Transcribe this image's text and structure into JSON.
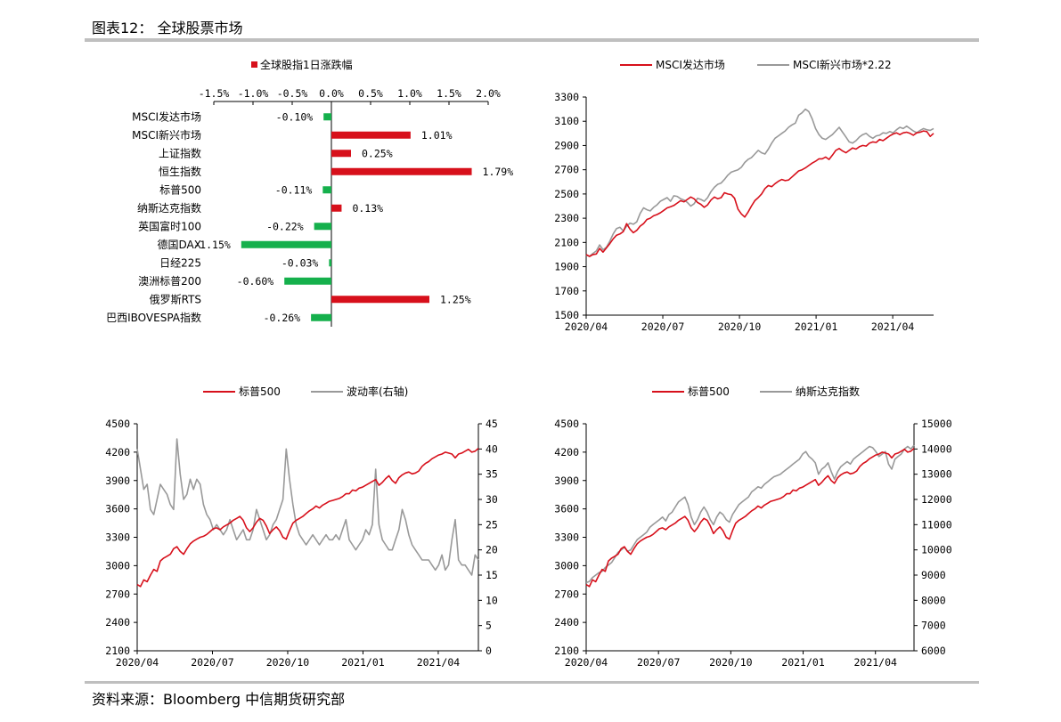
{
  "header": {
    "title": "图表12： 全球股票市场"
  },
  "footer": {
    "source": "资料来源：Bloomberg 中信期货研究部"
  },
  "colors": {
    "red": "#d7101b",
    "green": "#15b04c",
    "gray": "#999999",
    "rule": "#bfbfbf"
  },
  "chart_data": [
    {
      "type": "bar",
      "orientation": "horizontal",
      "legend": "全球股指1日涨跌幅",
      "xlim": [
        -1.5,
        2.0
      ],
      "xticks": [
        "-1.5%",
        "-1.0%",
        "-0.5%",
        "0.0%",
        "0.5%",
        "1.0%",
        "1.5%",
        "2.0%"
      ],
      "categories": [
        "MSCI发达市场",
        "MSCI新兴市场",
        "上证指数",
        "恒生指数",
        "标普500",
        "纳斯达克指数",
        "英国富时100",
        "德国DAX",
        "日经225",
        "澳洲标普200",
        "俄罗斯RTS",
        "巴西IBOVESPA指数"
      ],
      "values": [
        -0.1,
        1.01,
        0.25,
        1.79,
        -0.11,
        0.13,
        -0.22,
        -1.15,
        -0.03,
        -0.6,
        1.25,
        -0.26
      ],
      "value_labels": [
        "-0.10%",
        "1.01%",
        "0.25%",
        "1.79%",
        "-0.11%",
        "0.13%",
        "-0.22%",
        "-1.15%",
        "-0.03%",
        "-0.60%",
        "1.25%",
        "-0.26%"
      ]
    },
    {
      "type": "line",
      "ylim": [
        1500,
        3300
      ],
      "yticks": [
        "1500",
        "1700",
        "1900",
        "2100",
        "2300",
        "2500",
        "2700",
        "2900",
        "3100",
        "3300"
      ],
      "xticks": [
        "2020/04",
        "2020/07",
        "2020/10",
        "2021/01",
        "2021/04"
      ],
      "series": [
        {
          "name": "MSCI发达市场",
          "color": "red",
          "values": [
            2000,
            1985,
            2000,
            2005,
            2050,
            2020,
            2055,
            2090,
            2130,
            2160,
            2170,
            2190,
            2255,
            2210,
            2180,
            2200,
            2235,
            2255,
            2290,
            2300,
            2320,
            2330,
            2345,
            2365,
            2385,
            2395,
            2405,
            2425,
            2445,
            2435,
            2455,
            2475,
            2460,
            2430,
            2415,
            2390,
            2410,
            2450,
            2475,
            2460,
            2470,
            2510,
            2500,
            2495,
            2465,
            2375,
            2335,
            2310,
            2350,
            2400,
            2445,
            2470,
            2500,
            2545,
            2570,
            2560,
            2585,
            2605,
            2620,
            2610,
            2615,
            2640,
            2665,
            2690,
            2700,
            2715,
            2735,
            2755,
            2770,
            2790,
            2790,
            2805,
            2785,
            2820,
            2860,
            2875,
            2855,
            2840,
            2860,
            2880,
            2870,
            2890,
            2900,
            2895,
            2920,
            2930,
            2925,
            2950,
            2940,
            2960,
            2980,
            2995,
            3005,
            2990,
            3005,
            3010,
            3000,
            2985,
            3005,
            3010,
            3020,
            3015,
            2975,
            3000
          ]
        },
        {
          "name": "MSCI新兴市场*2.22",
          "color": "gray",
          "values": [
            1995,
            1985,
            2010,
            2030,
            2080,
            2040,
            2060,
            2110,
            2170,
            2215,
            2225,
            2195,
            2235,
            2260,
            2250,
            2270,
            2340,
            2385,
            2370,
            2360,
            2390,
            2410,
            2440,
            2455,
            2470,
            2440,
            2485,
            2480,
            2460,
            2450,
            2430,
            2400,
            2420,
            2465,
            2455,
            2440,
            2470,
            2520,
            2555,
            2580,
            2590,
            2620,
            2655,
            2680,
            2690,
            2700,
            2720,
            2760,
            2785,
            2800,
            2830,
            2860,
            2840,
            2830,
            2870,
            2920,
            2960,
            2980,
            3000,
            3020,
            3050,
            3070,
            3085,
            3150,
            3170,
            3200,
            3180,
            3120,
            3040,
            2990,
            2960,
            2950,
            2970,
            2990,
            3020,
            3050,
            3010,
            2970,
            2930,
            2920,
            2940,
            2970,
            2990,
            3000,
            2975,
            2960,
            2980,
            2985,
            3005,
            3000,
            3015,
            3005,
            3030,
            3050,
            3040,
            3060,
            3040,
            3020,
            3005,
            3025,
            3040,
            3030,
            3025,
            3040
          ]
        }
      ],
      "legend": [
        "MSCI发达市场",
        "MSCI新兴市场*2.22"
      ]
    },
    {
      "type": "line",
      "ylim": [
        2100,
        4500
      ],
      "yticks": [
        "2100",
        "2400",
        "2700",
        "3000",
        "3300",
        "3600",
        "3900",
        "4200",
        "4500"
      ],
      "y2lim": [
        0,
        45
      ],
      "y2ticks": [
        "0",
        "5",
        "10",
        "15",
        "20",
        "25",
        "30",
        "35",
        "40",
        "45"
      ],
      "xticks": [
        "2020/04",
        "2020/07",
        "2020/10",
        "2021/01",
        "2021/04"
      ],
      "series": [
        {
          "name": "标普500",
          "color": "red",
          "axis": "left",
          "values": [
            2800,
            2780,
            2850,
            2830,
            2900,
            2960,
            2940,
            3050,
            3080,
            3100,
            3120,
            3180,
            3200,
            3150,
            3120,
            3180,
            3230,
            3260,
            3280,
            3300,
            3310,
            3330,
            3360,
            3390,
            3400,
            3380,
            3410,
            3430,
            3450,
            3480,
            3500,
            3520,
            3480,
            3400,
            3360,
            3400,
            3460,
            3500,
            3480,
            3420,
            3340,
            3380,
            3410,
            3370,
            3300,
            3280,
            3370,
            3450,
            3480,
            3500,
            3520,
            3550,
            3580,
            3600,
            3630,
            3610,
            3640,
            3660,
            3680,
            3690,
            3700,
            3710,
            3730,
            3760,
            3760,
            3800,
            3790,
            3820,
            3830,
            3850,
            3870,
            3890,
            3910,
            3850,
            3880,
            3920,
            3950,
            3900,
            3870,
            3930,
            3960,
            3980,
            3990,
            3970,
            3980,
            4000,
            4050,
            4080,
            4100,
            4130,
            4150,
            4170,
            4180,
            4200,
            4190,
            4180,
            4140,
            4180,
            4190,
            4210,
            4230,
            4200,
            4210,
            4240
          ]
        },
        {
          "name": "波动率(右轴)",
          "color": "gray",
          "axis": "right",
          "values": [
            40,
            36,
            32,
            33,
            28,
            27,
            30,
            33,
            32,
            31,
            29,
            28,
            42,
            35,
            30,
            31,
            34,
            32,
            34,
            33,
            29,
            27,
            26,
            24,
            25,
            24,
            23,
            24,
            26,
            24,
            22,
            23,
            24,
            22,
            22,
            24,
            28,
            26,
            24,
            22,
            23,
            25,
            26,
            28,
            30,
            40,
            34,
            29,
            25,
            23,
            22,
            21,
            22,
            23,
            22,
            21,
            22,
            23,
            22,
            22,
            23,
            22,
            24,
            26,
            22,
            21,
            20,
            21,
            22,
            24,
            23,
            25,
            36,
            25,
            22,
            21,
            20,
            20,
            22,
            24,
            28,
            26,
            23,
            21,
            20,
            19,
            18,
            18,
            18,
            17,
            16,
            17,
            19,
            16,
            17,
            22,
            26,
            18,
            17,
            17,
            16,
            15,
            19,
            18
          ]
        }
      ],
      "legend": [
        "标普500",
        "波动率(右轴)"
      ]
    },
    {
      "type": "line",
      "ylim": [
        2100,
        4500
      ],
      "yticks": [
        "2100",
        "2400",
        "2700",
        "3000",
        "3300",
        "3600",
        "3900",
        "4200",
        "4500"
      ],
      "y2lim": [
        6000,
        15000
      ],
      "y2ticks": [
        "6000",
        "7000",
        "8000",
        "9000",
        "10000",
        "11000",
        "12000",
        "13000",
        "14000",
        "15000"
      ],
      "xticks": [
        "2020/04",
        "2020/07",
        "2020/10",
        "2021/01",
        "2021/04"
      ],
      "series": [
        {
          "name": "标普500",
          "color": "red",
          "axis": "left",
          "values": [
            2800,
            2780,
            2850,
            2830,
            2900,
            2960,
            2940,
            3050,
            3080,
            3100,
            3120,
            3180,
            3200,
            3150,
            3120,
            3180,
            3230,
            3260,
            3280,
            3300,
            3310,
            3330,
            3360,
            3390,
            3400,
            3380,
            3410,
            3430,
            3450,
            3480,
            3500,
            3520,
            3480,
            3400,
            3360,
            3400,
            3460,
            3500,
            3480,
            3420,
            3340,
            3380,
            3410,
            3370,
            3300,
            3280,
            3370,
            3450,
            3480,
            3500,
            3520,
            3550,
            3580,
            3600,
            3630,
            3610,
            3640,
            3660,
            3680,
            3690,
            3700,
            3710,
            3730,
            3760,
            3760,
            3800,
            3790,
            3820,
            3830,
            3850,
            3870,
            3890,
            3910,
            3850,
            3880,
            3920,
            3950,
            3900,
            3870,
            3930,
            3960,
            3980,
            3990,
            3970,
            3980,
            4000,
            4050,
            4080,
            4100,
            4130,
            4150,
            4170,
            4180,
            4200,
            4190,
            4180,
            4140,
            4180,
            4190,
            4210,
            4230,
            4200,
            4210,
            4240
          ]
        },
        {
          "name": "纳斯达克指数",
          "color": "gray",
          "axis": "right",
          "values": [
            8700,
            8750,
            8900,
            9000,
            9100,
            9150,
            9300,
            9400,
            9500,
            9700,
            9900,
            10000,
            10100,
            9950,
            10000,
            10200,
            10400,
            10500,
            10600,
            10700,
            10900,
            11000,
            11100,
            11200,
            11300,
            11150,
            11400,
            11500,
            11700,
            11900,
            12000,
            12100,
            11800,
            11300,
            11000,
            11200,
            11500,
            11700,
            11500,
            11200,
            11000,
            11300,
            11500,
            11400,
            11200,
            11100,
            11400,
            11600,
            11800,
            11900,
            12000,
            12100,
            12300,
            12400,
            12500,
            12450,
            12600,
            12700,
            12800,
            12900,
            12950,
            13000,
            13100,
            13200,
            13300,
            13400,
            13500,
            13600,
            13800,
            13900,
            13700,
            13600,
            13450,
            13000,
            13200,
            13300,
            13450,
            13100,
            12800,
            13100,
            13300,
            13400,
            13500,
            13400,
            13600,
            13700,
            13800,
            13900,
            14000,
            14100,
            14050,
            13900,
            13700,
            13800,
            13900,
            13400,
            13200,
            13600,
            13700,
            13800,
            14000,
            14100,
            14000,
            14150
          ]
        }
      ],
      "legend": [
        "标普500",
        "纳斯达克指数"
      ]
    }
  ]
}
